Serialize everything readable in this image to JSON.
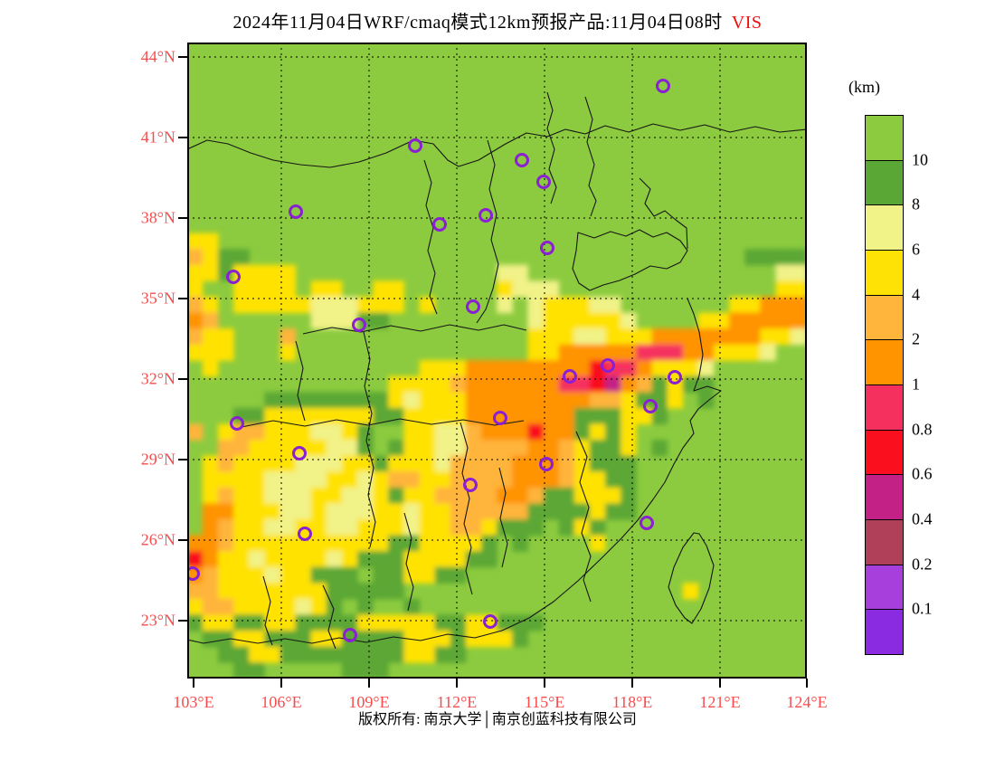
{
  "title": {
    "main": "2024年11月04日WRF/cmaq模式12km预报产品:11月04日08时",
    "tag": "VIS"
  },
  "footer": {
    "text": "版权所有: 南京大学│南京创蓝科技有限公司"
  },
  "axes": {
    "lat": [
      "44°N",
      "41°N",
      "38°N",
      "35°N",
      "32°N",
      "29°N",
      "26°N",
      "23°N"
    ],
    "lon": [
      "103°E",
      "106°E",
      "109°E",
      "112°E",
      "115°E",
      "118°E",
      "121°E",
      "124°E"
    ]
  },
  "legend": {
    "unit": "(km)",
    "labels": [
      "10",
      "8",
      "6",
      "4",
      "2",
      "1",
      "0.8",
      "0.6",
      "0.4",
      "0.2",
      "0.1"
    ],
    "colors": [
      "#8CCB3F",
      "#5BA735",
      "#F1F288",
      "#FFE205",
      "#FFB43B",
      "#FF9300",
      "#F5305E",
      "#F90F1E",
      "#C32185",
      "#B04059",
      "#A63FDB",
      "#8A2BE2"
    ]
  },
  "map": {
    "background": "#8CCB3F",
    "border_color": "#000000",
    "boundary_color": "#161616",
    "gridline_color": "#000000",
    "marker_color": "#8B1FD4",
    "palette": {
      "G": "#8CCB3F",
      "g": "#5BA735",
      "p": "#F1F288",
      "y": "#FFE205",
      "o": "#FFB43B",
      "O": "#FF9300",
      "c": "#F5305E",
      "r": "#F90F1E",
      "m": "#C32185",
      "d": "#B04059",
      "v": "#A63FDB",
      "V": "#8A2BE2"
    },
    "rows": [
      "GGGGGGGGGGGGGGGGGGGGGGGGGGGGGGGGGGGGGGGG",
      "GGGGGGGGGGGGGGGGGGGGGGGGGGGGGGGGGGGGGGGG",
      "GGGGGGGGGGGGGGGGGGGGGGGGGGGGGGGGGGGGGGGG",
      "GGGGGGGGGGGGGGGGGGGGGGGGGGGGGGGGGGGGGGGG",
      "GGGGGGGGGGGGGGGGGGGGGGGGGGGGGGGGGGGGGGGG",
      "GGGGGGGGGGGGGGGGGGGGGGGGGGGGGGGGGGGGGGGG",
      "GGGGGGGGGGGGGGGGGGGGGGGGGGGGGGGGGGGGGGGG",
      "GGGGGGGGGGGGGGGGGGGGGGGGGGGGGGGGGGGGGGGG",
      "GGGGGGGGGGGGGGGGGGGGGGGGGGGGGGGGGGGGGGGG",
      "GGGGGGGGGGGGGGGGGGGGGGGGGGGGGGGGGGGGGGGG",
      "GGGGGGGGGGGGGGGGGGGGGGGGGGGGGGGGGGGGGGGG",
      "GGGGGGGGGGGGGGGGGGGGGGGGGGGGGGGGGGGGGGGG",
      "yyGGGGGGGGGGGGGGGGGGGGGGGGGGGGGGGGGGGGGG",
      "oyggGGGGGGGGGGGGGGGGGGGGGGGGGGGGGGGGgggg",
      "yygyyyyGGGGGGGGGGGGGppGGGGGGGGGGGGGGGGpp",
      "yGGyyyyGyyGGyyGGGGGGypppGGGGGGGGGGGGGGyy",
      "oyGyyyyypppyyyGyGGGGpGpyyyppGGGGGGGyyOOO",
      "OoGGGGGGpppggGGGGGGGGGpyyyyypGGGGyyOOOOO",
      "oyyGGGoGGGGGGGGGGGGGGGyyyppyyyOOOOOOOyyp",
      "yyyGGGyGGGGGGGGGGGGGGGyyOOOOOcccOOyyypGG",
      "GyGGGGGGGGGGGGGyyyOOOOOOOOrccOyyypGGGGGG",
      "GGGGGGGGGGGGGyyyyoOOOOOOccrmOogyggGGGGGG",
      "GGGGGggggggggypyyyOOOOOOOOooyggyGgGGGGGG",
      "GGGggyyyyyyyggyyyyOOOOOOOgggyygGGGGGGGGG",
      "oGyooyyyppygGGyyppoOOOrOOgygyGGGGGGGGGGG",
      "GGooyyyyyppgGgyyppooooOOoyggyGgGGGGGGGGG",
      "GyoyyyypppyygyyypooooOOOoygggGGGGGGGGGGG",
      "GyyyyppppyypyooyyooooOOOoyyggGGGGGGGGGGG",
      "GyoyypppyyppygyyooooOOoggyyygGGGGGGGGGGG",
      "GOOyyyppypppyypyyoooooggggyggGGGGGGGGGGG",
      "GOoyyppyyppyyypyyooygggGgygGGGGGGGGGGGGG",
      "OOoyyyyyyyyyyggyyyygGgGGGGyGGGGGGGGGGGGG",
      "rOyypyyyypygggyyyyggGGGGGGGGGGGGGGGGGGGG",
      "OoyyypyygggGggyyggGGGGGGGGGGGGGGGGGGGGGG",
      "ooyyyyyyygggggGGGGGGGGGGGGGGGGGGyGGGGGGG",
      "yooyyyypygGgGGgGGGGGGGGGGGGGGGGGGGGGGGGG",
      "gyyggyyggggyyyyyggyygggGGGGGGGGGGGGGGGGG",
      "GggyygggyyggggyyygyyygGGGGGGGGGGGGGGGGGG",
      "GGggyyggggggggyyggGGGGGGGGGGGGGGGGGGGGGG",
      "GGGggGGGGGgggGGGGGGGGGGGGGGGGGGGGGGGGGGG"
    ],
    "markers": [
      [
        526,
        48
      ],
      [
        252,
        114
      ],
      [
        370,
        130
      ],
      [
        394,
        154
      ],
      [
        330,
        191
      ],
      [
        279,
        201
      ],
      [
        398,
        227
      ],
      [
        120,
        187
      ],
      [
        51,
        259
      ],
      [
        316,
        292
      ],
      [
        190,
        312
      ],
      [
        465,
        357
      ],
      [
        423,
        369
      ],
      [
        539,
        370
      ],
      [
        512,
        402
      ],
      [
        346,
        415
      ],
      [
        55,
        421
      ],
      [
        124,
        454
      ],
      [
        397,
        466
      ],
      [
        313,
        489
      ],
      [
        508,
        531
      ],
      [
        130,
        543
      ],
      [
        6,
        587
      ],
      [
        335,
        640
      ],
      [
        180,
        655
      ]
    ],
    "boundaries": [
      "M0,118 L22,108 45,112 70,122 95,130 125,135 158,138 190,132 220,122 250,108 272,112 288,130 300,137 322,130 352,112 375,100 398,104 418,96 440,101 462,92 488,99 515,90 545,97 572,91 600,99 628,93 655,99 685,96",
      "M398,55 L404,75 398,95 406,118 400,140 408,160 402,178",
      "M440,60 L448,85 442,110 450,135 444,158 452,175 446,192",
      "M262,130 L270,155 264,180 272,205 266,230 274,255 268,280 276,300",
      "M332,108 L340,135 334,162 342,190 336,218 344,245 338,272 330,295 320,310",
      "M432,210 L450,216 468,209 485,214 500,207 515,215 530,210 545,219 553,230 545,243 530,250 512,247 495,256 478,263 460,268 445,274 433,266 426,250 430,230 Z",
      "M500,150 L512,162 506,178 516,192 528,186 540,196 552,205 553,228",
      "M553,283 L560,300 566,320 570,345 566,368 560,385 575,380 590,385 577,395 565,405 556,418 560,432 548,448 538,466 528,486 515,505 498,528 480,548 458,570 432,595 405,618 378,636 348,650 318,658 288,654 258,661 228,657 198,663 168,658 138,664 108,659 78,664 48,659 18,664 0,660",
      "M128,322 L160,315 192,320 225,313 258,319 290,312 322,318 350,312 375,318",
      "M60,425 L95,418 130,424 165,417 200,423 235,416 270,422 305,417 340,423 372,418",
      "M195,320 L202,350 196,380 204,410 198,440 206,470 200,500 208,530 202,558",
      "M302,420 L310,448 304,476 312,504 306,532 314,558 308,584 315,610",
      "M430,430 L442,458 434,486 444,514 436,542 446,568 438,594 446,618",
      "M120,330 L128,360 122,390 130,418",
      "M240,520 L248,548 242,576 250,602 244,628",
      "M345,470 L352,498 346,526 354,554 348,580",
      "M150,600 L162,626 156,650 164,670",
      "M84,590 L92,618 86,644 94,666"
    ],
    "islands": [
      "M560,542 L548,558 538,580 532,602 540,622 550,636 558,642 568,626 577,603 582,578 574,556 566,543 Z"
    ]
  }
}
